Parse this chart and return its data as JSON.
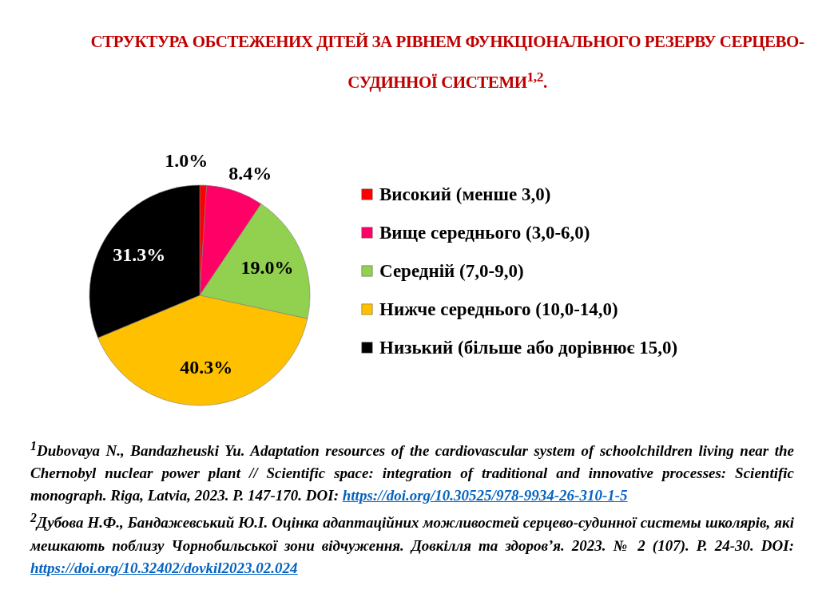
{
  "chart_data": {
    "type": "pie",
    "title": "СТРУКТУРА ОБСТЕЖЕНИХ ДІТЕЙ ЗА РІВНЕМ ФУНКЦІОНАЛЬНОГО РЕЗЕРВУ СЕРЦЕВО-СУДИННОЇ СИСТЕМИ$^{1,2}$.",
    "categories": [
      "Високий (менше 3,0)",
      "Вище середнього (3,0-6,0)",
      "Середній (7,0-9,0)",
      "Нижче середнього (10,0-14,0)",
      "Низький (більше або дорівнює 15,0)"
    ],
    "values": [
      1.0,
      8.4,
      19.0,
      40.3,
      31.3
    ],
    "value_labels": [
      "1.0%",
      "8.4%",
      "19.0%",
      "40.3%",
      "31.3%"
    ],
    "colors": [
      "#ff0000",
      "#ff0066",
      "#92d050",
      "#ffc000",
      "#000000"
    ],
    "legend": "right",
    "annotations": [
      "$^{1}$Dubovaya N., Bandazheuski Yu. Adaptation resources of the cardiovascular system of schoolchildren living near the Chernobyl nuclear power plant // Scientific space: integration of traditional and innovative processes: Scientific monograph. Riga, Latvia, 2023. P. 147-170. DOI: https://doi.org/10.30525/978-9934-26-310-1-5",
      "$^{2}$Дубова Н.Ф., Бандажевський Ю.І. Оцінка адаптаційних можливостей серцево-судинної системы школярів, які мешкають поблизу Чорнобильської зони відчуження. Довкілля та здоров’я. 2023. № 2 (107). P. 24-30. DOI: https://doi.org/10.32402/dovkil2023.02.024"
    ]
  }
}
